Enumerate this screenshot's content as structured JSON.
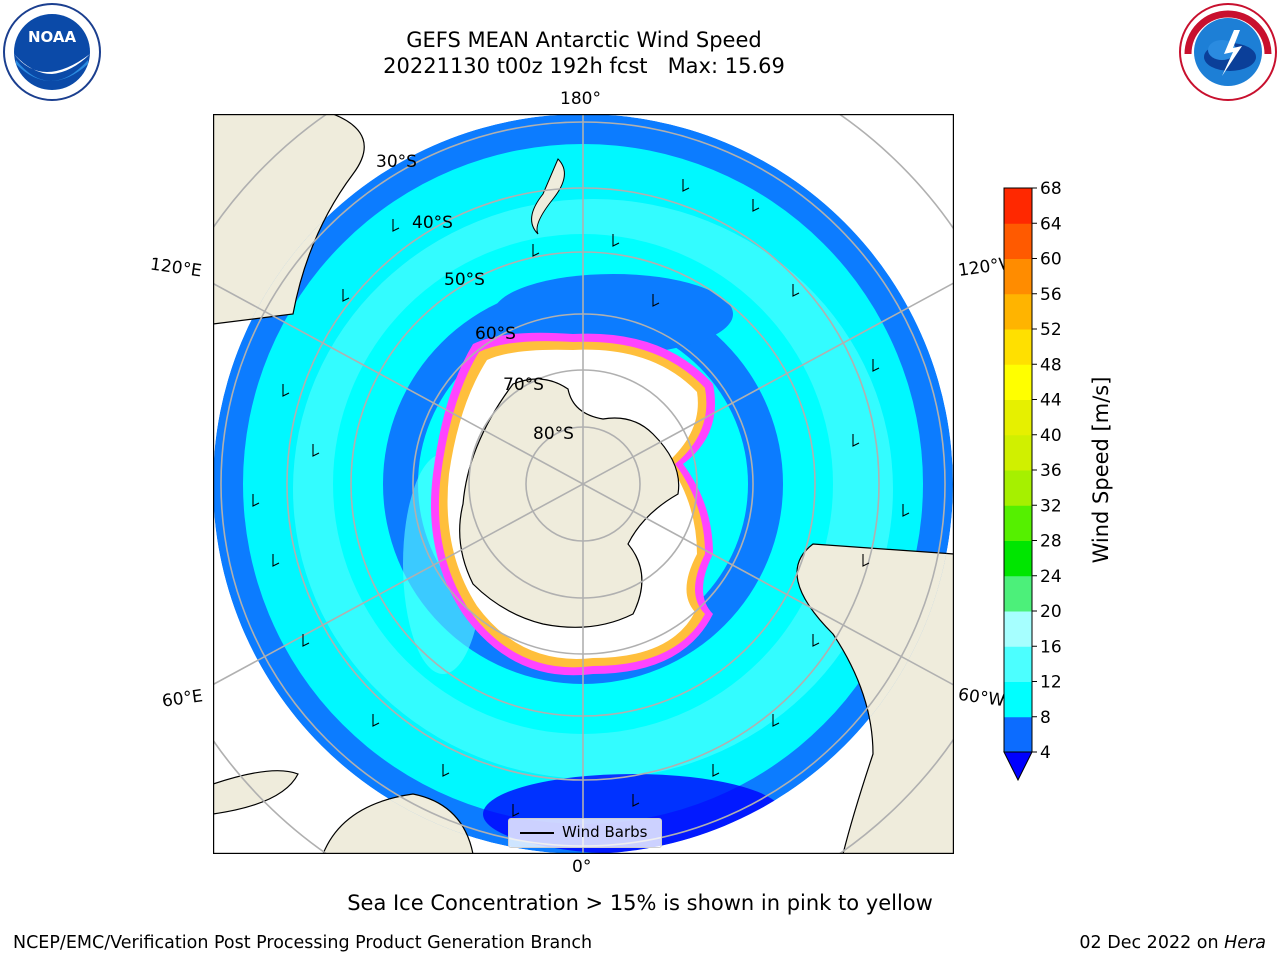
{
  "header": {
    "title_line1": "GEFS MEAN Antarctic Wind Speed",
    "title_line2": "20221130 t00z 192h fcst   Max: 15.69"
  },
  "map": {
    "longitude_labels": {
      "top": "180°",
      "bottom": "0°",
      "left_upper": "120°E",
      "left_lower": "60°E",
      "right_upper": "120°W",
      "right_lower": "60°W"
    },
    "latitude_labels": [
      "30°S",
      "40°S",
      "50°S",
      "60°S",
      "70°S",
      "80°S"
    ],
    "legend_label": "Wind Barbs",
    "icons": [
      "wind-barb-icon",
      "land-mass",
      "sea-ice"
    ],
    "colors": {
      "land": "#efecdc",
      "ice_white": "#ffffff",
      "ice_pink": "#ff44ff",
      "ice_yellow": "#ffbf3c",
      "sea_dark": "#0c7cff",
      "sea_mid": "#00ffff",
      "sea_light": "#5cffff"
    }
  },
  "colorbar": {
    "label": "Wind Speed [m/s]",
    "ticks": [
      "4",
      "8",
      "12",
      "16",
      "20",
      "24",
      "28",
      "32",
      "36",
      "40",
      "44",
      "48",
      "52",
      "56",
      "60",
      "64",
      "68"
    ],
    "colors": [
      "#0c6cff",
      "#00ffff",
      "#4cffff",
      "#a6ffff",
      "#4cf07a",
      "#00e600",
      "#55f000",
      "#a6f000",
      "#d0f000",
      "#e6f000",
      "#ffff00",
      "#ffe000",
      "#ffb400",
      "#ff8c00",
      "#ff5a00",
      "#ff2800",
      "#ff0000"
    ],
    "under_color": "#0000ff"
  },
  "caption": "Sea Ice Concentration > 15% is shown in pink to yellow",
  "footer": {
    "left": "NCEP/EMC/Verification Post Processing Product Generation Branch",
    "right_date": "02 Dec 2022 on ",
    "right_host": "Hera"
  },
  "logos": {
    "left": "NOAA",
    "right": "NATIONAL WEATHER SERVICE"
  }
}
